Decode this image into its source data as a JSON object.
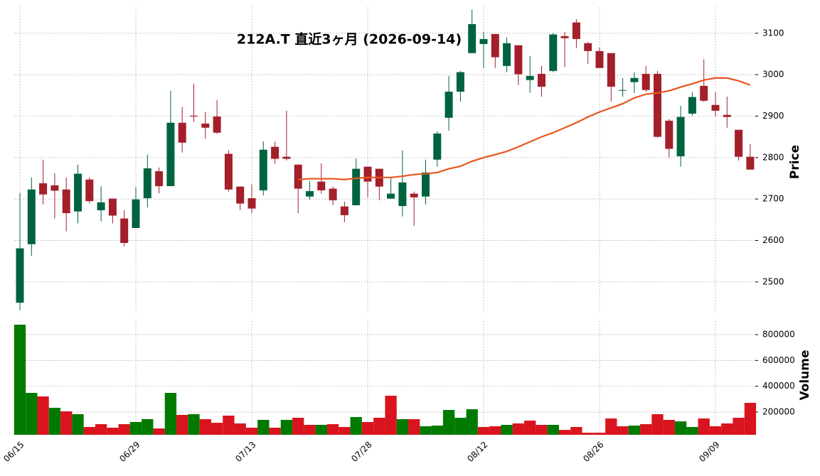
{
  "chart_data": {
    "type": "candlestick",
    "title": "212A.T  直近3ヶ月  (2026-09-14)",
    "ylabel": "Price",
    "categories": [
      "06/15",
      null,
      null,
      null,
      null,
      null,
      null,
      null,
      null,
      null,
      "06/29",
      null,
      null,
      null,
      null,
      null,
      null,
      null,
      null,
      null,
      "07/13",
      null,
      null,
      null,
      null,
      null,
      null,
      null,
      null,
      null,
      "07/28",
      null,
      null,
      null,
      null,
      null,
      null,
      null,
      null,
      null,
      "08/12",
      null,
      null,
      null,
      null,
      null,
      null,
      null,
      null,
      null,
      "08/26",
      null,
      null,
      null,
      null,
      null,
      null,
      null,
      null,
      null,
      "09/09",
      null,
      null,
      null
    ],
    "open": [
      2450,
      2591,
      2738,
      2733,
      2723,
      2670,
      2747,
      2673,
      2701,
      2653,
      2630,
      2702,
      2767,
      2731,
      2884,
      2901,
      2882,
      2899,
      2809,
      2730,
      2702,
      2721,
      2826,
      2802,
      2783,
      2706,
      2742,
      2725,
      2682,
      2685,
      2778,
      2773,
      2701,
      2683,
      2713,
      2706,
      2795,
      2896,
      2959,
      3052,
      3074,
      3098,
      3021,
      3071,
      2987,
      3002,
      3009,
      3093,
      3126,
      3076,
      3057,
      3052,
      2962,
      2982,
      3002,
      3002,
      2889,
      2803,
      2906,
      2973,
      2927,
      2903,
      2867,
      2802
    ],
    "high": [
      2714,
      2752,
      2795,
      2762,
      2752,
      2783,
      2752,
      2731,
      2701,
      2673,
      2728,
      2807,
      2776,
      2961,
      2922,
      2978,
      2910,
      2939,
      2817,
      2730,
      2735,
      2839,
      2838,
      2913,
      2783,
      2743,
      2786,
      2730,
      2694,
      2798,
      2778,
      2773,
      2752,
      2817,
      2718,
      2795,
      2863,
      2997,
      3009,
      3157,
      3103,
      3098,
      3090,
      3071,
      3045,
      3021,
      3100,
      3103,
      3134,
      3079,
      3066,
      3052,
      2992,
      3006,
      3021,
      3009,
      2893,
      2925,
      2958,
      3037,
      2958,
      2947,
      2867,
      2833
    ],
    "low": [
      2432,
      2563,
      2687,
      2653,
      2622,
      2641,
      2690,
      2646,
      2641,
      2586,
      2630,
      2680,
      2714,
      2731,
      2812,
      2886,
      2845,
      2857,
      2718,
      2673,
      2666,
      2709,
      2785,
      2793,
      2666,
      2699,
      2713,
      2685,
      2644,
      2685,
      2704,
      2697,
      2701,
      2658,
      2635,
      2687,
      2778,
      2865,
      2935,
      3052,
      3016,
      3016,
      3006,
      2975,
      2956,
      2947,
      3006,
      3018,
      3064,
      3026,
      3016,
      2935,
      2947,
      2956,
      2959,
      2848,
      2800,
      2778,
      2901,
      2934,
      2899,
      2872,
      2793,
      2771
    ],
    "close": [
      2581,
      2723,
      2711,
      2720,
      2666,
      2761,
      2695,
      2692,
      2660,
      2594,
      2699,
      2774,
      2731,
      2884,
      2836,
      2899,
      2872,
      2860,
      2723,
      2689,
      2677,
      2819,
      2797,
      2797,
      2725,
      2719,
      2721,
      2697,
      2661,
      2773,
      2742,
      2730,
      2713,
      2740,
      2704,
      2764,
      2858,
      2959,
      3006,
      3122,
      3086,
      3042,
      3076,
      3001,
      2997,
      2971,
      3097,
      3088,
      3086,
      3057,
      3016,
      2971,
      2963,
      2992,
      2963,
      2850,
      2821,
      2898,
      2946,
      2937,
      2913,
      2898,
      2802,
      2771
    ],
    "up_color": "#006340",
    "down_color": "#a31f2a",
    "ylim": [
      2426,
      3163
    ],
    "yticks": [
      2500,
      2600,
      2700,
      2800,
      2900,
      3000,
      3100
    ],
    "grid": true,
    "ma": {
      "color": "#e8561e",
      "values": [
        null,
        null,
        null,
        null,
        null,
        null,
        null,
        null,
        null,
        null,
        null,
        null,
        null,
        null,
        null,
        null,
        null,
        null,
        null,
        null,
        null,
        null,
        null,
        null,
        2747,
        2749,
        2749,
        2749,
        2747,
        2750,
        2752,
        2752,
        2752,
        2755,
        2759,
        2761,
        2764,
        2773,
        2779,
        2791,
        2800,
        2807,
        2815,
        2826,
        2838,
        2850,
        2860,
        2872,
        2884,
        2898,
        2910,
        2920,
        2930,
        2944,
        2953,
        2956,
        2961,
        2970,
        2978,
        2987,
        2992,
        2992,
        2985,
        2975
      ]
    },
    "volume": {
      "ylabel": "Volume",
      "up_color": "#007a00",
      "down_color": "#d9141e",
      "ylim": [
        24000,
        904600
      ],
      "yticks": [
        200000,
        400000,
        600000,
        800000
      ],
      "values": [
        877000,
        348600,
        321000,
        233000,
        205500,
        183500,
        84400,
        106400,
        79000,
        106400,
        123000,
        145000,
        73000,
        348600,
        178000,
        183500,
        145000,
        117000,
        172500,
        112000,
        79000,
        139500,
        79000,
        139500,
        156000,
        101000,
        101000,
        106400,
        84400,
        161500,
        123000,
        156000,
        326600,
        145000,
        145000,
        90000,
        95500,
        216500,
        156000,
        222000,
        84400,
        90000,
        101000,
        112000,
        134000,
        101000,
        101000,
        62000,
        84400,
        40000,
        40000,
        150500,
        90000,
        95500,
        106400,
        183500,
        139500,
        128000,
        84400,
        150500,
        90000,
        112000,
        156000,
        271500
      ]
    }
  }
}
